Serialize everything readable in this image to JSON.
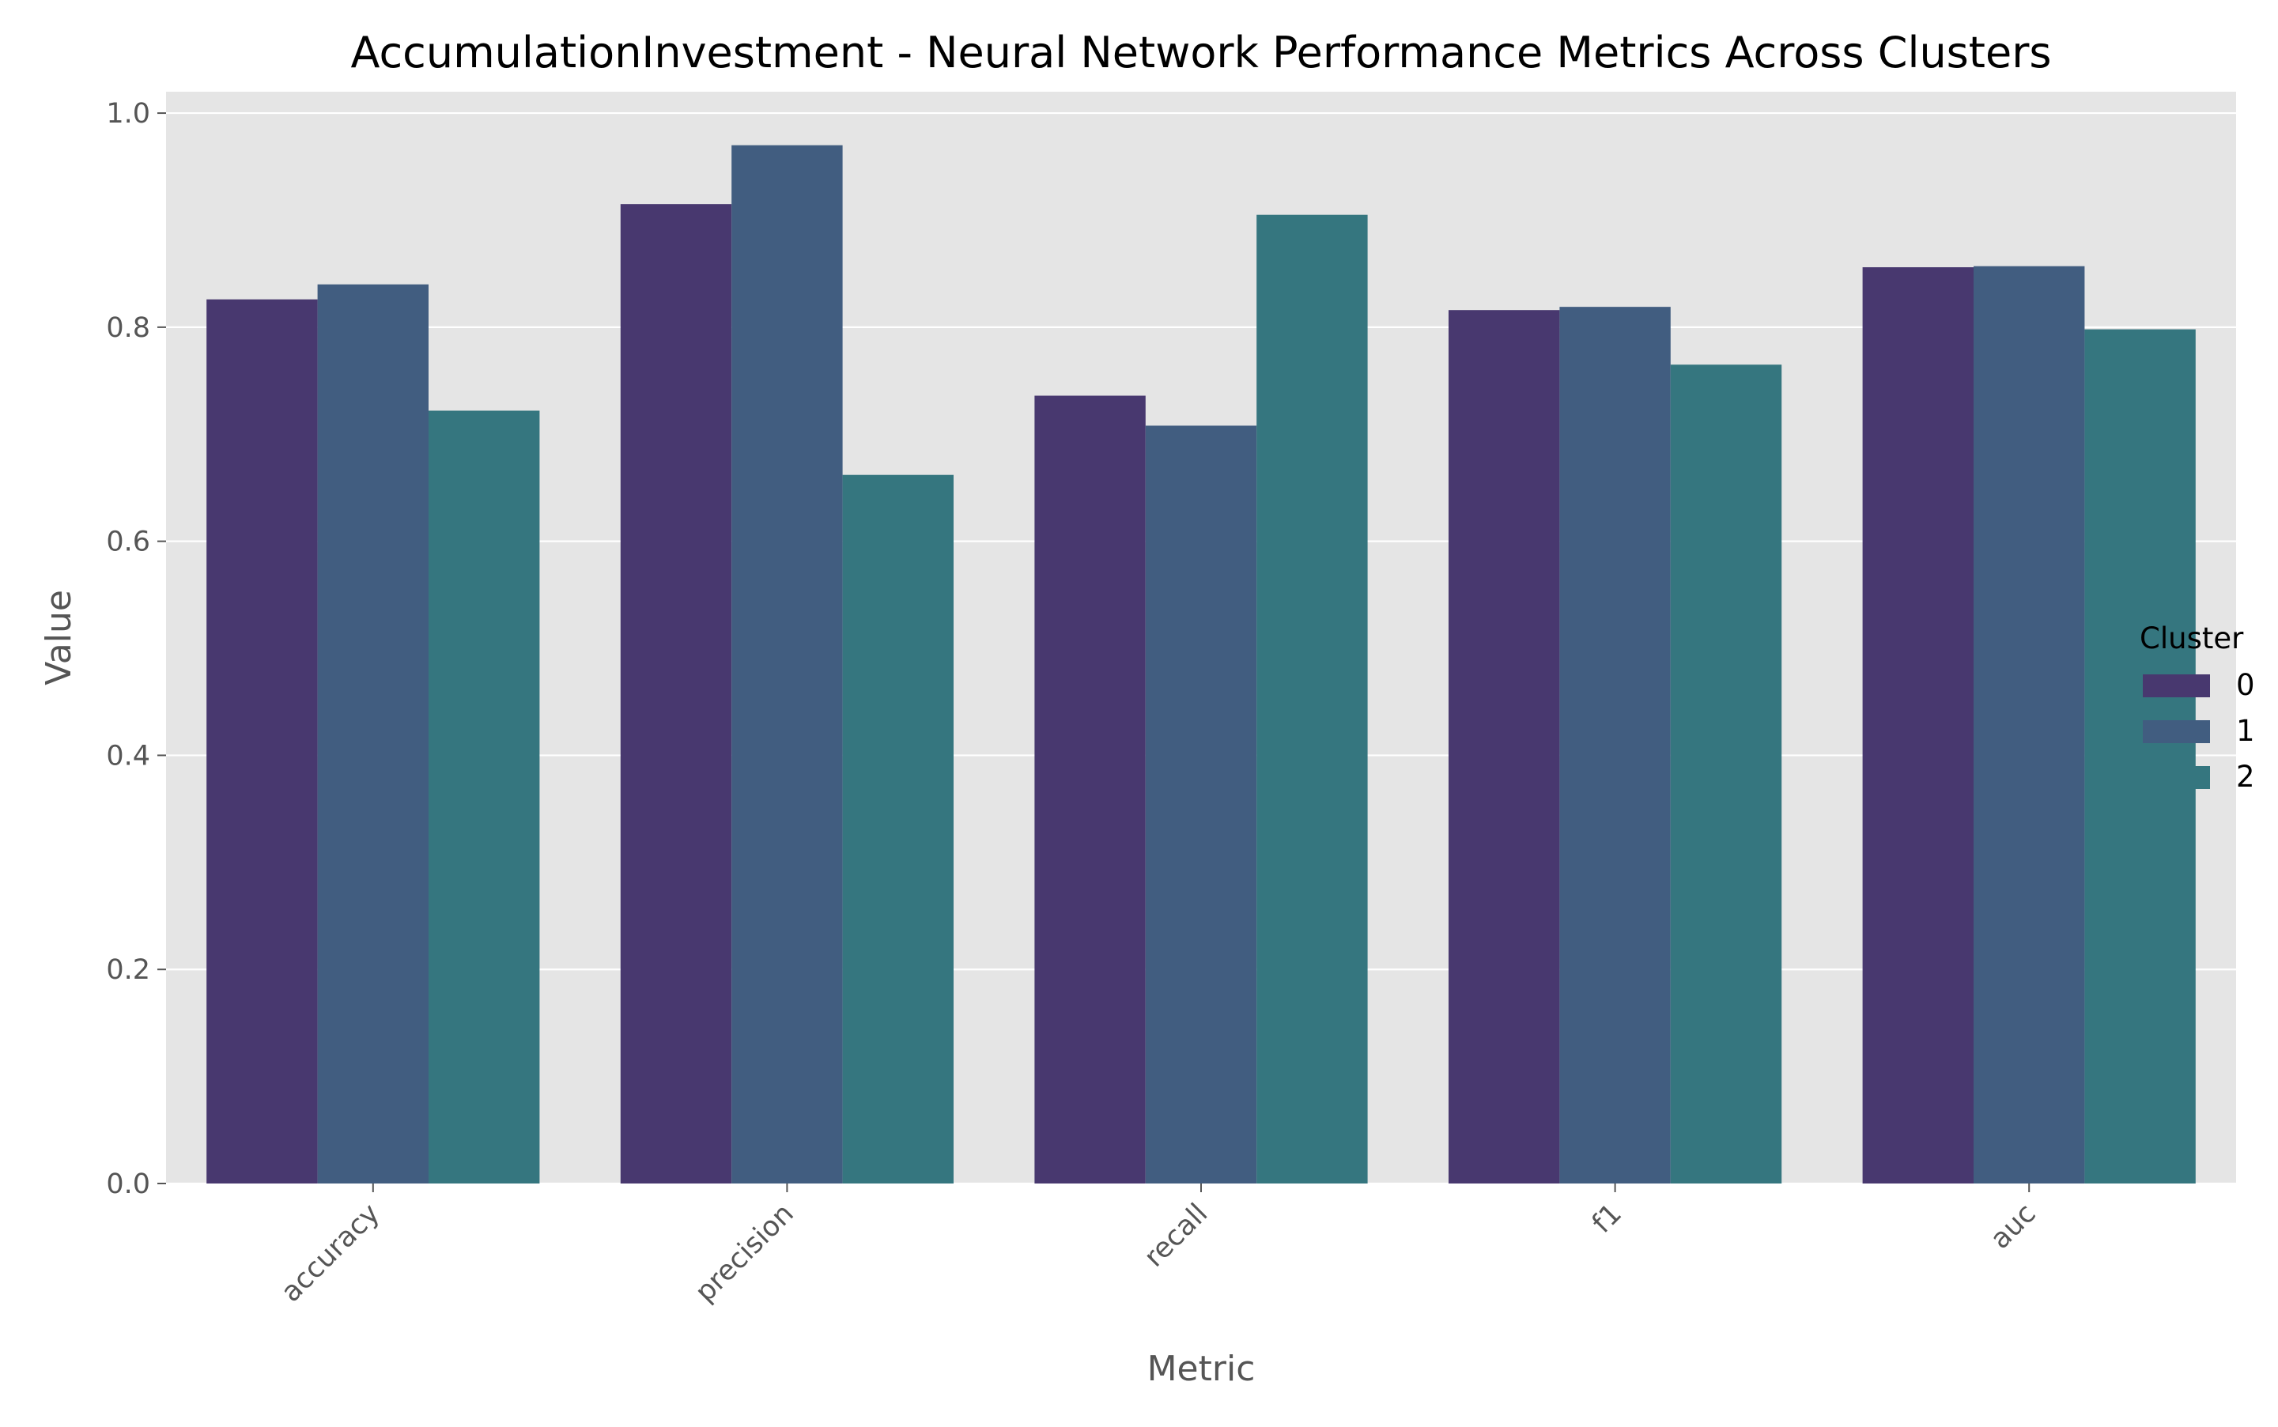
{
  "chart_data": {
    "type": "bar",
    "title": "AccumulationInvestment - Neural Network Performance Metrics Across Clusters",
    "xlabel": "Metric",
    "ylabel": "Value",
    "categories": [
      "accuracy",
      "precision",
      "recall",
      "f1",
      "auc"
    ],
    "ylim": [
      0,
      1.02
    ],
    "yticks": [
      "0.0",
      "0.2",
      "0.4",
      "0.6",
      "0.8",
      "1.0"
    ],
    "grid": true,
    "legend": {
      "title": "Cluster",
      "placement": "right"
    },
    "series": [
      {
        "name": "0",
        "color": "#48386f",
        "values": [
          0.826,
          0.915,
          0.736,
          0.816,
          0.856
        ]
      },
      {
        "name": "1",
        "color": "#415d80",
        "values": [
          0.84,
          0.97,
          0.708,
          0.819,
          0.857
        ]
      },
      {
        "name": "2",
        "color": "#35767f",
        "values": [
          0.722,
          0.662,
          0.905,
          0.765,
          0.798
        ]
      }
    ]
  }
}
